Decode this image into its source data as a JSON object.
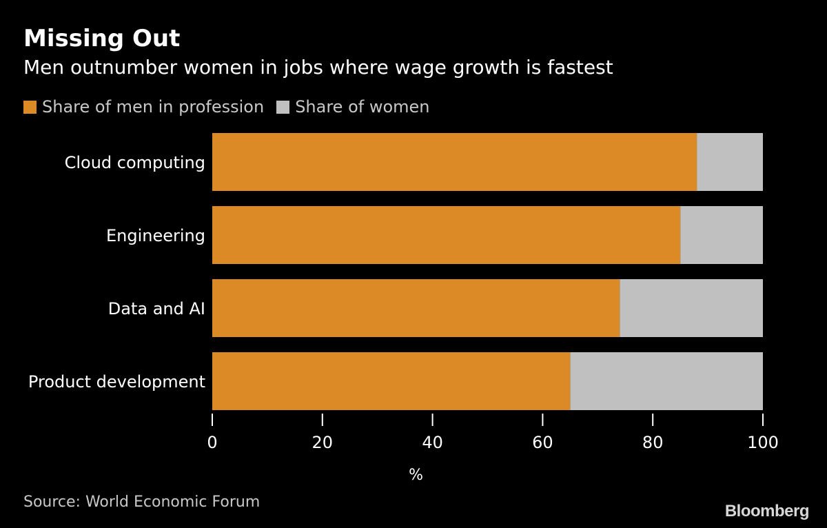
{
  "header": {
    "title": "Missing Out",
    "subtitle": "Men outnumber women in jobs where wage growth is fastest"
  },
  "legend": {
    "items": [
      {
        "label": "Share of men in profession",
        "color": "#dc8a25"
      },
      {
        "label": "Share of women",
        "color": "#c0c0c0"
      }
    ]
  },
  "footer": {
    "source": "Source: World Economic Forum",
    "brand": "Bloomberg"
  },
  "chart_data": {
    "type": "bar",
    "orientation": "horizontal",
    "stacked": true,
    "title": "Missing Out",
    "subtitle": "Men outnumber women in jobs where wage growth is fastest",
    "categories": [
      "Cloud computing",
      "Engineering",
      "Data and AI",
      "Product development"
    ],
    "series": [
      {
        "name": "Share of men in profession",
        "color": "#dc8a25",
        "values": [
          88,
          85,
          74,
          65
        ]
      },
      {
        "name": "Share of women",
        "color": "#c0c0c0",
        "values": [
          12,
          15,
          26,
          35
        ]
      }
    ],
    "xlabel": "%",
    "ylabel": "",
    "xlim": [
      0,
      100
    ],
    "xticks": [
      0,
      20,
      40,
      60,
      80,
      100
    ],
    "grid": false,
    "legend_position": "top-left"
  }
}
